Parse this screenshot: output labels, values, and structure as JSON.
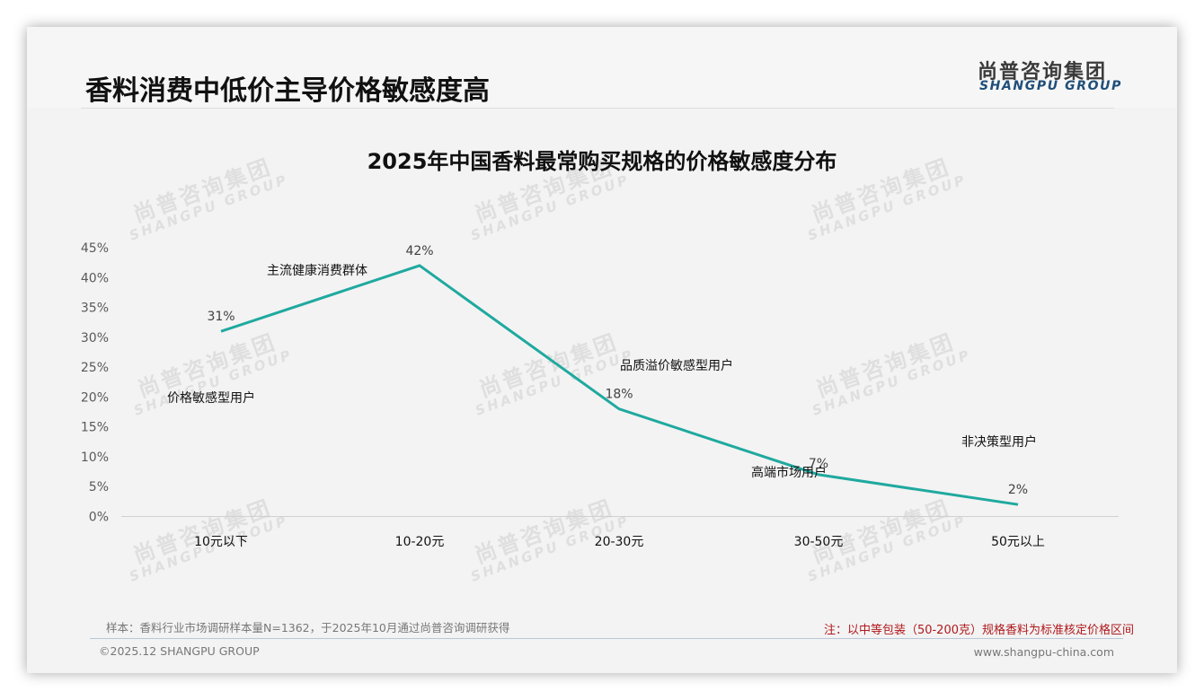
{
  "header": {
    "title": "香料消费中低价主导价格敏感度高",
    "logo_cn": "尚普咨询集团",
    "logo_en": "SHANGPU GROUP"
  },
  "watermark": {
    "cn": "尚普咨询集团",
    "en": "SHANGPU GROUP"
  },
  "colors": {
    "line": "#1fa99f",
    "axis": "#d0d0d0",
    "note_red": "#b0181c",
    "logo_blue": "#1f4e79"
  },
  "chart_data": {
    "type": "line",
    "title": "2025年中国香料最常购买规格的价格敏感度分布",
    "xlabel": "",
    "ylabel": "",
    "categories": [
      "10元以下",
      "10-20元",
      "20-30元",
      "30-50元",
      "50元以上"
    ],
    "series": [
      {
        "name": "价格敏感度分布",
        "values": [
          31,
          42,
          18,
          7,
          2
        ]
      }
    ],
    "data_labels": [
      "31%",
      "42%",
      "18%",
      "7%",
      "2%"
    ],
    "annotations": [
      "价格敏感型用户",
      "主流健康消费群体",
      "品质溢价敏感型用户",
      "高端市场用户",
      "非决策型用户"
    ],
    "yticks": [
      "0%",
      "5%",
      "10%",
      "15%",
      "20%",
      "25%",
      "30%",
      "35%",
      "40%",
      "45%"
    ],
    "ylim": [
      0,
      45
    ],
    "grid": false,
    "legend": "none"
  },
  "footer": {
    "sample": "样本：香料行业市场调研样本量N=1362，于2025年10月通过尚普咨询调研获得",
    "note": "注：以中等包装（50-200克）规格香料为标准核定价格区间",
    "copyright": "©2025.12 SHANGPU GROUP",
    "website": "www.shangpu-china.com"
  }
}
